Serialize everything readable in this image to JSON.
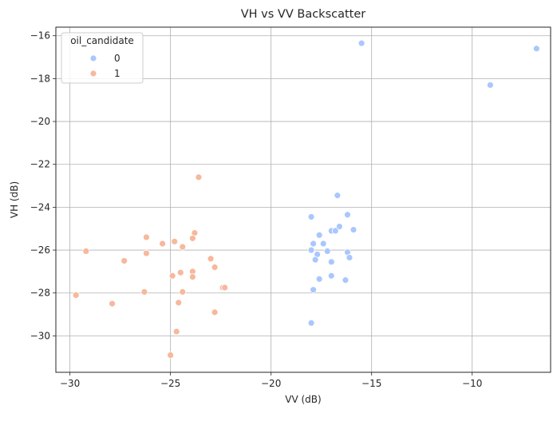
{
  "chart_data": {
    "type": "scatter",
    "title": "VH vs VV Backscatter",
    "xlabel": "VV (dB)",
    "ylabel": "VH (dB)",
    "xlim": [
      -30.7,
      -6.1
    ],
    "ylim": [
      -31.7,
      -15.6
    ],
    "xticks": [
      -30,
      -25,
      -20,
      -15,
      -10
    ],
    "yticks": [
      -30,
      -28,
      -26,
      -24,
      -22,
      -20,
      -18,
      -16
    ],
    "xtick_labels": [
      "−30",
      "−25",
      "−20",
      "−15",
      "−10"
    ],
    "ytick_labels": [
      "−30",
      "−28",
      "−26",
      "−24",
      "−22",
      "−20",
      "−18",
      "−16"
    ],
    "grid": true,
    "legend": {
      "title": "oil_candidate",
      "placement": "top-left"
    },
    "series": [
      {
        "name": "0",
        "color": "#aac7fd",
        "points": [
          [
            -15.5,
            -16.35
          ],
          [
            -6.8,
            -16.6
          ],
          [
            -9.1,
            -18.3
          ],
          [
            -16.7,
            -23.45
          ],
          [
            -18.0,
            -24.45
          ],
          [
            -16.2,
            -24.35
          ],
          [
            -16.6,
            -24.9
          ],
          [
            -15.9,
            -25.05
          ],
          [
            -17.0,
            -25.1
          ],
          [
            -16.8,
            -25.1
          ],
          [
            -17.6,
            -25.3
          ],
          [
            -17.4,
            -25.7
          ],
          [
            -17.9,
            -25.7
          ],
          [
            -18.0,
            -26.0
          ],
          [
            -17.2,
            -26.05
          ],
          [
            -17.7,
            -26.2
          ],
          [
            -16.2,
            -26.1
          ],
          [
            -16.1,
            -26.35
          ],
          [
            -17.8,
            -26.45
          ],
          [
            -17.0,
            -26.55
          ],
          [
            -17.0,
            -27.2
          ],
          [
            -17.6,
            -27.35
          ],
          [
            -16.3,
            -27.4
          ],
          [
            -17.9,
            -27.85
          ],
          [
            -18.0,
            -29.4
          ]
        ]
      },
      {
        "name": "1",
        "color": "#f7b89c",
        "points": [
          [
            -23.6,
            -22.6
          ],
          [
            -23.8,
            -25.2
          ],
          [
            -23.9,
            -25.45
          ],
          [
            -26.2,
            -25.4
          ],
          [
            -25.4,
            -25.7
          ],
          [
            -24.8,
            -25.6
          ],
          [
            -24.4,
            -25.85
          ],
          [
            -29.2,
            -26.05
          ],
          [
            -26.2,
            -26.15
          ],
          [
            -23.0,
            -26.4
          ],
          [
            -27.3,
            -26.5
          ],
          [
            -22.8,
            -26.8
          ],
          [
            -24.5,
            -27.05
          ],
          [
            -23.9,
            -27.0
          ],
          [
            -24.9,
            -27.2
          ],
          [
            -23.9,
            -27.25
          ],
          [
            -22.4,
            -27.75
          ],
          [
            -22.3,
            -27.75
          ],
          [
            -26.3,
            -27.95
          ],
          [
            -24.4,
            -27.95
          ],
          [
            -29.7,
            -28.1
          ],
          [
            -27.9,
            -28.5
          ],
          [
            -24.6,
            -28.45
          ],
          [
            -22.8,
            -28.9
          ],
          [
            -24.7,
            -29.8
          ],
          [
            -25.0,
            -30.9
          ]
        ]
      }
    ]
  }
}
